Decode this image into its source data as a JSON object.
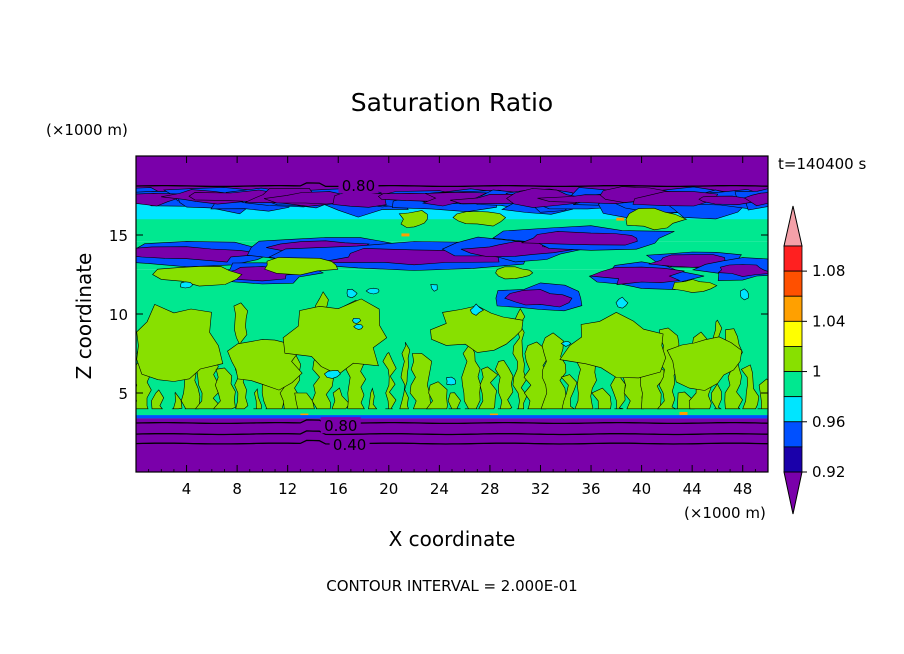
{
  "chart_data": {
    "type": "heatmap",
    "title": "Saturation Ratio",
    "xlabel": "X coordinate",
    "ylabel": "Z coordinate",
    "x_unit": "(×1000 m)",
    "y_unit": "(×1000 m)",
    "time_label": "t=140400 s",
    "contour_note": "CONTOUR INTERVAL = 2.000E-01",
    "xlim": [
      0,
      50
    ],
    "ylim": [
      0,
      20
    ],
    "x_ticks": [
      4,
      8,
      12,
      16,
      20,
      24,
      28,
      32,
      36,
      40,
      44,
      48
    ],
    "y_ticks": [
      5,
      10,
      15
    ],
    "colorbar": {
      "levels": [
        0.92,
        0.94,
        0.96,
        0.98,
        1,
        1.02,
        1.04,
        1.06,
        1.08,
        1.1
      ],
      "labels": [
        "0.92",
        "0.96",
        "1",
        "1.04",
        "1.08"
      ],
      "colors": [
        "#7a00aa",
        "#1a00aa",
        "#0050ff",
        "#00e5ff",
        "#00e890",
        "#88e000",
        "#ffff00",
        "#ffa000",
        "#ff5000",
        "#ff2020",
        "#f4a0a8"
      ]
    },
    "contour_labels": [
      {
        "text": "0.80",
        "x": 17.6,
        "z": 18.1
      },
      {
        "text": "0.80",
        "x": 16.2,
        "z": 2.9
      },
      {
        "text": "0.40",
        "x": 16.9,
        "z": 1.7
      }
    ],
    "bands": [
      {
        "z0": 0,
        "z1": 3.2,
        "level": 0
      },
      {
        "z0": 3.2,
        "z1": 3.6,
        "level": 4
      },
      {
        "z0": 3.6,
        "z1": 12.8,
        "level": 4
      },
      {
        "z0": 12.8,
        "z1": 14.6,
        "level": 4
      },
      {
        "z0": 14.6,
        "z1": 16.8,
        "level": 4
      },
      {
        "z0": 16.8,
        "z1": 17.5,
        "level": 2
      },
      {
        "z0": 17.5,
        "z1": 20,
        "level": 0
      }
    ]
  }
}
